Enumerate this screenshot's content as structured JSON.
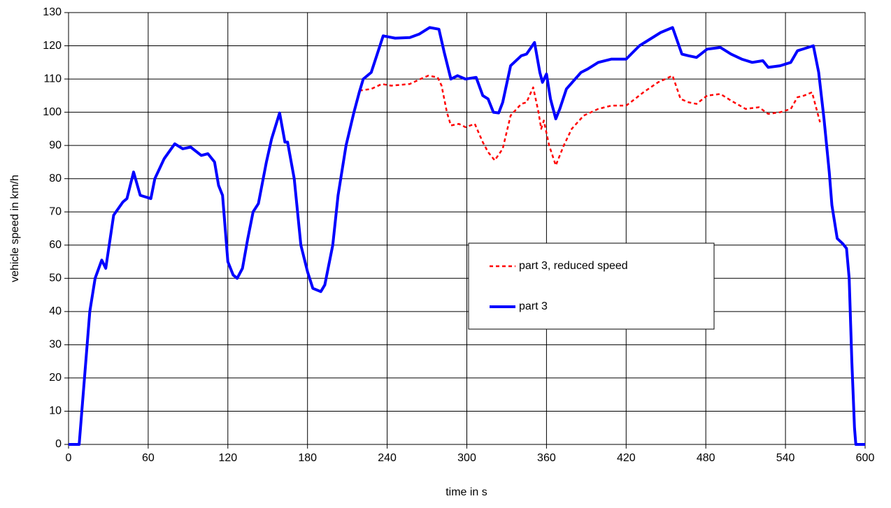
{
  "chart_data": {
    "type": "line",
    "xlabel": "time in s",
    "ylabel": "vehicle speed in km/h",
    "xlim": [
      0,
      600
    ],
    "xticks": [
      0,
      60,
      120,
      180,
      240,
      300,
      360,
      420,
      480,
      540,
      600
    ],
    "ylim": [
      0,
      130
    ],
    "yticks": [
      0,
      10,
      20,
      30,
      40,
      50,
      60,
      70,
      80,
      90,
      100,
      110,
      120,
      130
    ],
    "grid": true,
    "legend": "center right",
    "series": [
      {
        "name": "part 3, reduced speed",
        "color": "#ff0000",
        "style": "dashed",
        "x": [
          219,
          228,
          236,
          243,
          257,
          265,
          271,
          278,
          281,
          285,
          288,
          294,
          299,
          306,
          312,
          316,
          321,
          327,
          333,
          341,
          345,
          350,
          354,
          356,
          358,
          362,
          367,
          373,
          379,
          388,
          399,
          409,
          420,
          425,
          433,
          444,
          455,
          461,
          467,
          473,
          481,
          491,
          499,
          510,
          520,
          527,
          536,
          544,
          549,
          554,
          560,
          562,
          566
        ],
        "values": [
          106.5,
          107,
          108.5,
          108,
          108.5,
          110,
          111,
          110.5,
          108,
          100,
          96,
          96.5,
          95.5,
          96.5,
          91,
          88,
          85.5,
          89,
          99,
          102.5,
          103,
          107.5,
          100,
          95,
          97.5,
          90,
          84,
          90,
          95,
          99,
          101,
          102,
          102,
          103.5,
          106,
          109,
          111,
          104,
          103,
          102.5,
          105,
          105.5,
          103.5,
          101,
          101.5,
          99.5,
          100,
          101,
          104.5,
          105,
          106,
          103,
          97
        ]
      },
      {
        "name": "part 3",
        "color": "#0000ff",
        "style": "solid",
        "x": [
          0,
          8,
          12,
          16,
          20,
          25,
          28,
          34,
          41,
          44,
          49,
          54,
          62,
          65,
          72,
          80,
          86,
          92,
          100,
          105,
          110,
          113,
          116,
          120,
          124,
          127,
          131,
          135,
          139,
          143,
          149,
          153,
          159,
          163,
          165,
          170,
          175,
          180,
          184,
          190,
          193,
          199,
          203,
          209,
          215,
          219,
          222,
          228,
          237,
          246,
          257,
          264,
          272,
          279,
          283,
          288,
          293,
          299,
          307,
          312,
          316,
          320,
          324,
          327,
          333,
          341,
          345,
          351,
          355,
          357,
          360,
          363,
          367,
          370,
          375,
          386,
          391,
          399,
          409,
          420,
          425,
          430,
          438,
          446,
          455,
          462,
          467,
          473,
          481,
          491,
          499,
          507,
          515,
          523,
          527,
          536,
          544,
          549,
          557,
          561,
          565,
          569,
          573,
          575,
          579,
          583,
          586,
          588,
          590,
          592,
          593,
          600
        ],
        "values": [
          0,
          0,
          20,
          40,
          50,
          55.5,
          53,
          69,
          73,
          74,
          82,
          75,
          74,
          80,
          86,
          90.5,
          89,
          89.5,
          87,
          87.5,
          85,
          78,
          75,
          55,
          51,
          50,
          53,
          62,
          70,
          72.5,
          85,
          92,
          99.8,
          91,
          91,
          80,
          60,
          52,
          47,
          46,
          48,
          60,
          75,
          90,
          100,
          106,
          110,
          112,
          123,
          122.3,
          122.5,
          123.5,
          125.5,
          125,
          118,
          110,
          111,
          110,
          110.5,
          105,
          104,
          100,
          99.8,
          103,
          114,
          117,
          117.5,
          121,
          112,
          109,
          111.5,
          104,
          98,
          101,
          107,
          112,
          113,
          115,
          116,
          116,
          118,
          120,
          122,
          124,
          125.5,
          117.5,
          117,
          116.5,
          119,
          119.5,
          117.5,
          116,
          115,
          115.5,
          113.5,
          114,
          115,
          118.5,
          119.5,
          120,
          112,
          98,
          82,
          72,
          62,
          60.5,
          59,
          50,
          25,
          5,
          0,
          0
        ]
      }
    ]
  }
}
